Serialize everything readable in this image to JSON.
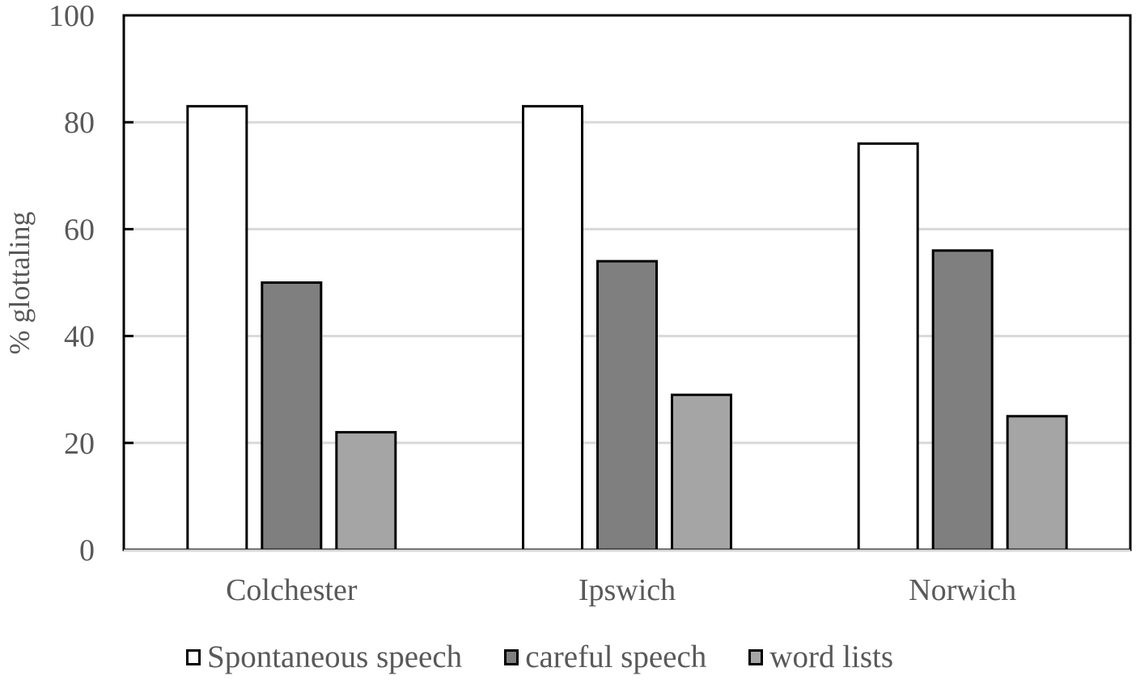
{
  "chart_data": {
    "type": "bar",
    "title": "",
    "xlabel": "",
    "ylabel": "% glottaling",
    "ylim": [
      0,
      100
    ],
    "yticks": [
      0,
      20,
      40,
      60,
      80,
      100
    ],
    "grid": true,
    "legend_position": "bottom",
    "categories": [
      "Colchester",
      "Ipswich",
      "Norwich"
    ],
    "series": [
      {
        "name": "Spontaneous speech",
        "color": "#ffffff",
        "values": [
          83,
          83,
          76
        ]
      },
      {
        "name": "careful speech",
        "color": "#7f7f7f",
        "values": [
          50,
          54,
          56
        ]
      },
      {
        "name": "word lists",
        "color": "#a5a5a5",
        "values": [
          22,
          29,
          25
        ]
      }
    ]
  }
}
